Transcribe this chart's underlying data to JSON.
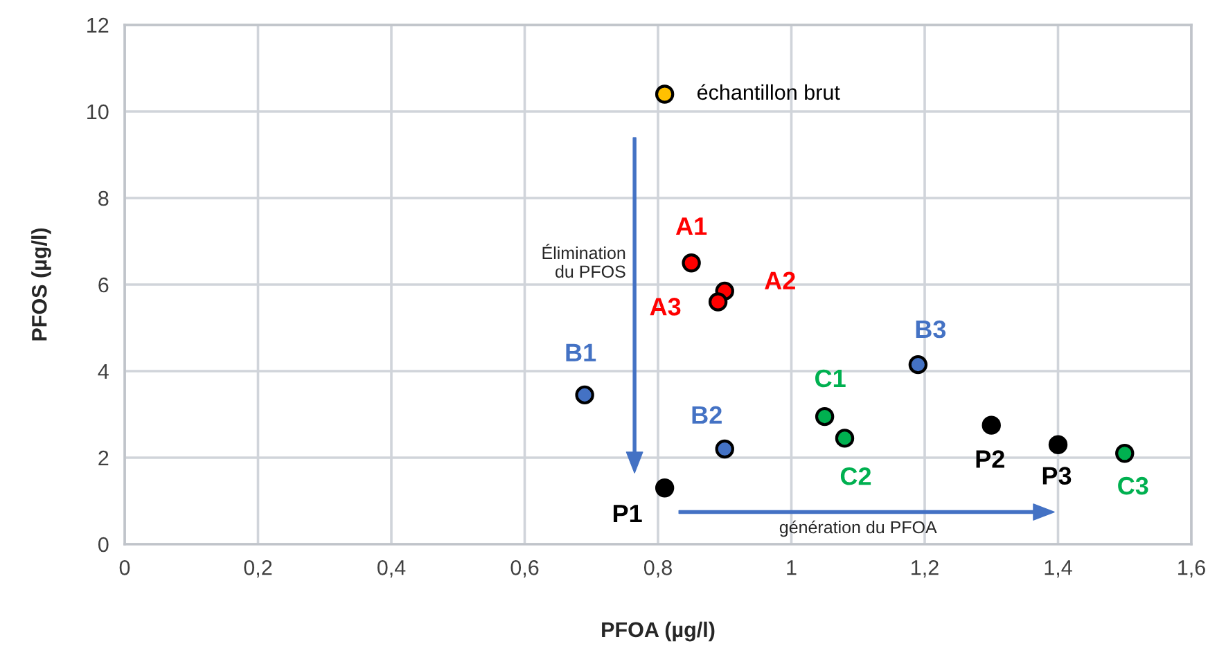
{
  "chart_data": {
    "type": "scatter",
    "xlabel": "PFOA (µg/l)",
    "ylabel": "PFOS (µg/l)",
    "xlim": [
      0,
      1.6
    ],
    "xticks": [
      {
        "value": 0,
        "label": "0"
      },
      {
        "value": 0.2,
        "label": "0,2"
      },
      {
        "value": 0.4,
        "label": "0,4"
      },
      {
        "value": 0.6,
        "label": "0,6"
      },
      {
        "value": 0.8,
        "label": "0,8"
      },
      {
        "value": 1,
        "label": "1"
      },
      {
        "value": 1.2,
        "label": "1,2"
      },
      {
        "value": 1.4,
        "label": "1,4"
      },
      {
        "value": 1.6,
        "label": "1,6"
      }
    ],
    "ylim": [
      0,
      12
    ],
    "yticks": [
      0,
      2,
      4,
      6,
      8,
      10,
      12
    ],
    "grid": true,
    "marker": "circle",
    "series": [
      {
        "color": "#ffc000",
        "x": [
          0.81
        ],
        "values": [
          10.4
        ],
        "value_labels": [
          "échantillon brut"
        ]
      },
      {
        "color": "#ff0000",
        "x": [
          0.85,
          0.9,
          0.89
        ],
        "values": [
          6.5,
          5.85,
          5.6
        ],
        "value_labels": [
          "A1",
          "A2",
          "A3"
        ]
      },
      {
        "color": "#4472c4",
        "x": [
          0.69,
          0.9,
          1.19
        ],
        "values": [
          3.45,
          2.2,
          4.15
        ],
        "value_labels": [
          "B1",
          "B2",
          "B3"
        ]
      },
      {
        "color": "#00b050",
        "x": [
          1.05,
          1.08,
          1.5
        ],
        "values": [
          2.95,
          2.45,
          2.1
        ],
        "value_labels": [
          "C1",
          "C2",
          "C3"
        ]
      },
      {
        "color": "#000000",
        "x": [
          0.81,
          1.3,
          1.4
        ],
        "values": [
          1.3,
          2.75,
          2.3
        ],
        "value_labels": [
          "P1",
          "P2",
          "P3"
        ]
      }
    ],
    "annotations": [
      "Élimination\ndu PFOS",
      "génération du PFOA"
    ]
  }
}
